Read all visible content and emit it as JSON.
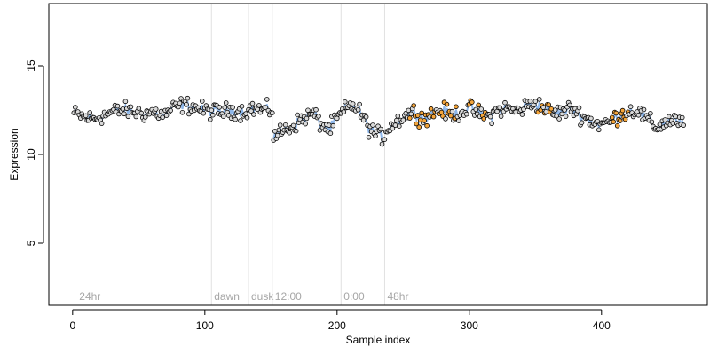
{
  "chart_data": {
    "type": "scatter",
    "title": "",
    "xlabel": "Sample index",
    "ylabel": "Expression",
    "xlim": [
      -18,
      480
    ],
    "ylim": [
      1.5,
      18.5
    ],
    "xticks": [
      0,
      100,
      200,
      300,
      400
    ],
    "yticks": [
      5,
      10,
      15
    ],
    "grid": false,
    "legend": "none",
    "colors": {
      "point_default": "#d9d9d9",
      "point_highlight": "#f4a53b",
      "point_edge": "#000000",
      "fit_line": "#8eb7ea",
      "fit_line_secondary": "#f4a53b",
      "region_line": "#e0e0e0",
      "region_label": "#a6a6a6"
    },
    "regions": [
      {
        "label": "24hr",
        "x": 3
      },
      {
        "label": "dawn",
        "x": 105
      },
      {
        "label": "dusk",
        "x": 133
      },
      {
        "label": "12:00",
        "x": 151
      },
      {
        "label": "0:00",
        "x": 203
      },
      {
        "label": "48hr",
        "x": 236
      }
    ],
    "segments": [
      {
        "x_start": 1,
        "x_end": 151,
        "y": [
          12.3,
          12.1,
          12.0,
          12.2,
          12.4,
          12.5,
          12.4,
          12.3,
          12.4,
          12.2,
          12.6,
          12.8,
          12.7,
          12.5,
          12.4,
          12.4,
          12.5,
          12.4,
          12.6,
          12.5,
          12.5
        ]
      },
      {
        "x_start": 152,
        "x_end": 236,
        "y": [
          11.0,
          11.3,
          11.5,
          11.8,
          12.1,
          12.3,
          11.7,
          11.4,
          12.0,
          12.5,
          12.8,
          12.3,
          11.5,
          11.1,
          11.0
        ]
      },
      {
        "x_start": 237,
        "x_end": 462,
        "y": [
          11.4,
          11.8,
          12.2,
          12.4,
          12.0,
          12.3,
          12.5,
          12.2,
          12.4,
          12.6,
          12.3,
          12.1,
          12.5,
          12.6,
          12.4,
          12.7,
          12.9,
          12.6,
          12.3,
          12.4,
          12.6,
          12.2,
          11.9,
          11.7,
          11.8,
          12.2,
          12.4,
          12.5,
          12.0,
          11.5,
          11.8,
          12.0,
          11.6
        ]
      }
    ],
    "noise_amplitude": 0.45,
    "point_count": 462,
    "highlight_ranges": [
      [
        255,
        290
      ],
      [
        300,
        312
      ],
      [
        352,
        362
      ],
      [
        408,
        420
      ]
    ]
  }
}
